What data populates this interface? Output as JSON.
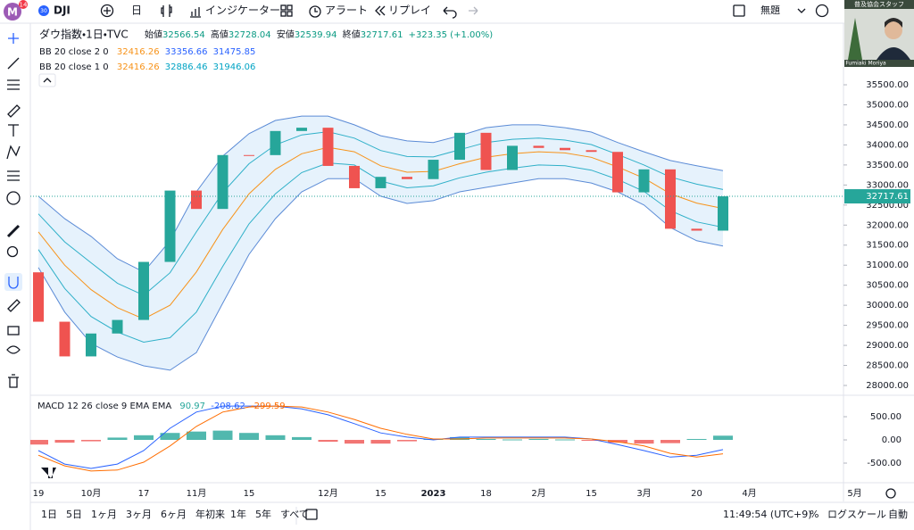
{
  "toolbar": {
    "avatar": "M",
    "badge": "14",
    "symbol_badge": "30",
    "symbol": "DJI",
    "interval": "日",
    "indicators": "インジケーター",
    "alert": "アラート",
    "replay": "リプレイ",
    "layout_name": "無題"
  },
  "webcam": {
    "caption": "普及協会スタッフ",
    "name": "Fumiaki Moriya"
  },
  "chart_data": {
    "type": "candlestick",
    "title": "ダウ指数・1日・TVC",
    "ohlc_labels": [
      "始値",
      "高値",
      "安値",
      "終値"
    ],
    "day_open": 32566.54,
    "day_high": 32728.04,
    "day_low": 32539.94,
    "change": "+323.35 (+1.00%)",
    "categories": [
      "19",
      null,
      "10月",
      null,
      "17",
      null,
      "11月",
      null,
      "15",
      null,
      null,
      "12月",
      null,
      "15",
      null,
      "2023",
      null,
      "18",
      null,
      "2月",
      null,
      "15",
      null,
      "3月",
      null,
      "20",
      null,
      "4月",
      null,
      null,
      null,
      "5月"
    ],
    "open": [
      30822,
      29590,
      28725,
      29296,
      29634,
      31082,
      32861,
      32403,
      33747,
      33746,
      34347,
      34429,
      33476,
      32920,
      33203,
      33147,
      33630,
      34302,
      33375,
      33978,
      33926,
      33869,
      33826,
      32817,
      33390,
      31909,
      31862,
      null,
      null,
      null,
      null,
      null
    ],
    "close": [
      29590,
      28725,
      29296,
      29634,
      31082,
      32861,
      32403,
      33747,
      33746,
      34347,
      34429,
      33476,
      32920,
      33203,
      33147,
      33630,
      34302,
      33375,
      33978,
      33926,
      33869,
      33826,
      32817,
      33390,
      31909,
      31862,
      32717.61,
      null,
      null,
      null,
      null,
      null
    ],
    "up_color": "#26a69a",
    "down_color": "#ef5350",
    "bollinger": [
      {
        "name": "BB 20 close 2 0",
        "middle_color": "#f7931a",
        "band_color": "#5b8bd6",
        "fill": "#e6f2fc",
        "middle": [
          31830,
          31000,
          30390,
          29940,
          29660,
          30000,
          30830,
          31890,
          32780,
          33390,
          33780,
          33940,
          33830,
          33480,
          33320,
          33340,
          33530,
          33690,
          33780,
          33830,
          33800,
          33690,
          33450,
          33170,
          32780,
          32550,
          32416.26,
          null,
          null,
          null,
          null,
          null
        ],
        "upper": [
          32720,
          32160,
          31720,
          31160,
          30830,
          31610,
          32830,
          33720,
          34280,
          34610,
          34720,
          34720,
          34500,
          34230,
          34100,
          34060,
          34230,
          34430,
          34500,
          34500,
          34430,
          34320,
          34060,
          33830,
          33610,
          33480,
          33356.66,
          null,
          null,
          null,
          null,
          null
        ],
        "lower": [
          30940,
          29830,
          29050,
          28710,
          28490,
          28380,
          28820,
          30050,
          31270,
          32160,
          32830,
          33160,
          33160,
          32720,
          32540,
          32610,
          32830,
          32940,
          33050,
          33160,
          33160,
          33050,
          32830,
          32500,
          31940,
          31610,
          31475.85,
          null,
          null,
          null,
          null,
          null
        ]
      },
      {
        "name": "BB 20 close 1 0",
        "band_color": "#2fb0c8",
        "upper": [
          32280,
          31580,
          31060,
          30550,
          30250,
          30810,
          31830,
          32810,
          33530,
          34000,
          34250,
          34330,
          34170,
          33860,
          33710,
          33700,
          33880,
          34060,
          34140,
          34170,
          34120,
          34010,
          33760,
          33500,
          33200,
          33020,
          32886.46,
          null,
          null,
          null,
          null,
          null
        ],
        "lower": [
          31390,
          30420,
          29720,
          29330,
          29080,
          29190,
          29830,
          30970,
          32030,
          32780,
          33310,
          33550,
          33500,
          33100,
          32930,
          32980,
          33180,
          33320,
          33420,
          33500,
          33480,
          33370,
          33140,
          32840,
          32360,
          32080,
          31946.06,
          null,
          null,
          null,
          null,
          null
        ]
      }
    ],
    "ylim": [
      27822,
      36947
    ],
    "yticks": [
      {
        "value": 28000,
        "label": "28000.00"
      },
      {
        "value": 28500,
        "label": "28500.00"
      },
      {
        "value": 29000,
        "label": "29000.00"
      },
      {
        "value": 29500,
        "label": "29500.00"
      },
      {
        "value": 30000,
        "label": "30000.00"
      },
      {
        "value": 30500,
        "label": "30500.00"
      },
      {
        "value": 31000,
        "label": "31000.00"
      },
      {
        "value": 31500,
        "label": "31500.00"
      },
      {
        "value": 32000,
        "label": "32000.00"
      },
      {
        "value": 32500,
        "label": "32500.00"
      },
      {
        "value": 33000,
        "label": "33000.00"
      },
      {
        "value": 33500,
        "label": "33500.00"
      },
      {
        "value": 34000,
        "label": "34000.00"
      },
      {
        "value": 34500,
        "label": "34500.00"
      },
      {
        "value": 35000,
        "label": "35000.00"
      },
      {
        "value": 35500,
        "label": "35500.00"
      }
    ],
    "grid": false,
    "macd": {
      "title": "MACD 12 26 close 9 EMA EMA",
      "histogram": [
        -100,
        -60,
        -30,
        50,
        100,
        150,
        180,
        200,
        150,
        100,
        60,
        -40,
        -80,
        -80,
        -30,
        20,
        60,
        20,
        10,
        20,
        10,
        -20,
        -60,
        -80,
        -70,
        20,
        90.97,
        null,
        null,
        null,
        null,
        null
      ],
      "macd": [
        -230,
        -520,
        -615,
        -520,
        -230,
        250,
        600,
        730,
        730,
        730,
        670,
        540,
        350,
        150,
        60,
        0,
        60,
        60,
        60,
        60,
        60,
        20,
        -100,
        -230,
        -370,
        -330,
        -208.62,
        null,
        null,
        null,
        null,
        null
      ],
      "signal": [
        -330,
        -560,
        -670,
        -650,
        -480,
        -130,
        290,
        600,
        710,
        730,
        710,
        600,
        440,
        250,
        120,
        20,
        20,
        40,
        40,
        40,
        40,
        20,
        -40,
        -130,
        -290,
        -370,
        -299.59,
        null,
        null,
        null,
        null,
        null
      ],
      "hist_up_color": "#26a69a",
      "hist_down_color": "#ef5350",
      "macd_color": "#2962ff",
      "signal_color": "#ff6d00",
      "ylim": [
        -865,
        885
      ],
      "yticks": [
        {
          "value": 500,
          "label": "500.00"
        },
        {
          "value": 0,
          "label": "0.00"
        },
        {
          "value": -500,
          "label": "-500.00"
        }
      ]
    }
  },
  "bottom_bar": {
    "ranges": [
      "1日",
      "5日",
      "1ヶ月",
      "3ヶ月",
      "6ヶ月",
      "年初来",
      "1年",
      "5年",
      "すべて"
    ],
    "clock": "11:49:54 (UTC+9)",
    "percent": "%",
    "log": "ログスケール",
    "auto": "自動"
  }
}
